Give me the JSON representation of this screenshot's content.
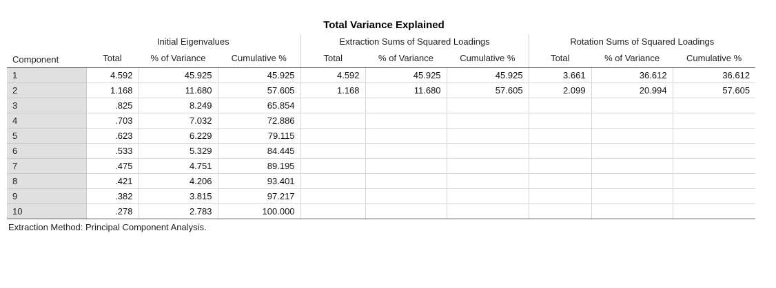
{
  "title": "Total Variance Explained",
  "groups": {
    "initial": "Initial Eigenvalues",
    "extraction": "Extraction Sums of Squared Loadings",
    "rotation": "Rotation Sums of Squared Loadings"
  },
  "columns": {
    "component": "Component",
    "total": "Total",
    "pct_variance": "% of Variance",
    "cumulative": "Cumulative %"
  },
  "rows": [
    {
      "component": "1",
      "init": [
        "4.592",
        "45.925",
        "45.925"
      ],
      "extr": [
        "4.592",
        "45.925",
        "45.925"
      ],
      "rot": [
        "3.661",
        "36.612",
        "36.612"
      ]
    },
    {
      "component": "2",
      "init": [
        "1.168",
        "11.680",
        "57.605"
      ],
      "extr": [
        "1.168",
        "11.680",
        "57.605"
      ],
      "rot": [
        "2.099",
        "20.994",
        "57.605"
      ]
    },
    {
      "component": "3",
      "init": [
        ".825",
        "8.249",
        "65.854"
      ],
      "extr": [
        "",
        "",
        ""
      ],
      "rot": [
        "",
        "",
        ""
      ]
    },
    {
      "component": "4",
      "init": [
        ".703",
        "7.032",
        "72.886"
      ],
      "extr": [
        "",
        "",
        ""
      ],
      "rot": [
        "",
        "",
        ""
      ]
    },
    {
      "component": "5",
      "init": [
        ".623",
        "6.229",
        "79.115"
      ],
      "extr": [
        "",
        "",
        ""
      ],
      "rot": [
        "",
        "",
        ""
      ]
    },
    {
      "component": "6",
      "init": [
        ".533",
        "5.329",
        "84.445"
      ],
      "extr": [
        "",
        "",
        ""
      ],
      "rot": [
        "",
        "",
        ""
      ]
    },
    {
      "component": "7",
      "init": [
        ".475",
        "4.751",
        "89.195"
      ],
      "extr": [
        "",
        "",
        ""
      ],
      "rot": [
        "",
        "",
        ""
      ]
    },
    {
      "component": "8",
      "init": [
        ".421",
        "4.206",
        "93.401"
      ],
      "extr": [
        "",
        "",
        ""
      ],
      "rot": [
        "",
        "",
        ""
      ]
    },
    {
      "component": "9",
      "init": [
        ".382",
        "3.815",
        "97.217"
      ],
      "extr": [
        "",
        "",
        ""
      ],
      "rot": [
        "",
        "",
        ""
      ]
    },
    {
      "component": "10",
      "init": [
        ".278",
        "2.783",
        "100.000"
      ],
      "extr": [
        "",
        "",
        ""
      ],
      "rot": [
        "",
        "",
        ""
      ]
    }
  ],
  "footnote": "Extraction Method: Principal Component Analysis."
}
